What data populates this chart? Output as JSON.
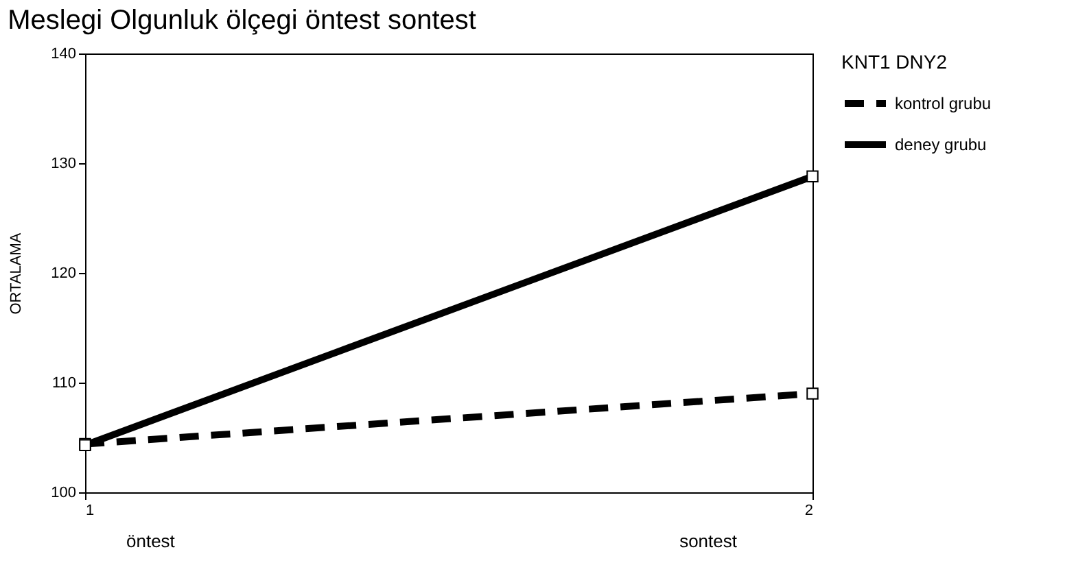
{
  "chart_data": {
    "type": "line",
    "title": "Meslegi Olgunluk ölçegi öntest sontest",
    "ylabel": "ORTALAMA",
    "legend_title": "KNT1 DNY2",
    "x": [
      1,
      2
    ],
    "xlim": [
      1,
      2
    ],
    "xticks": [
      1,
      2
    ],
    "ylim": [
      100,
      140
    ],
    "yticks": [
      100,
      110,
      120,
      130,
      140
    ],
    "series": [
      {
        "name": "kontrol grubu",
        "color": "#000000",
        "line_style": "dashed",
        "values": [
          104.4,
          109.0
        ]
      },
      {
        "name": "deney grubu",
        "color": "#000000",
        "line_style": "solid",
        "values": [
          104.3,
          128.8
        ]
      }
    ],
    "annotations": [
      "öntest",
      "sontest"
    ],
    "marker": "square",
    "grid": false,
    "legend": "right"
  }
}
